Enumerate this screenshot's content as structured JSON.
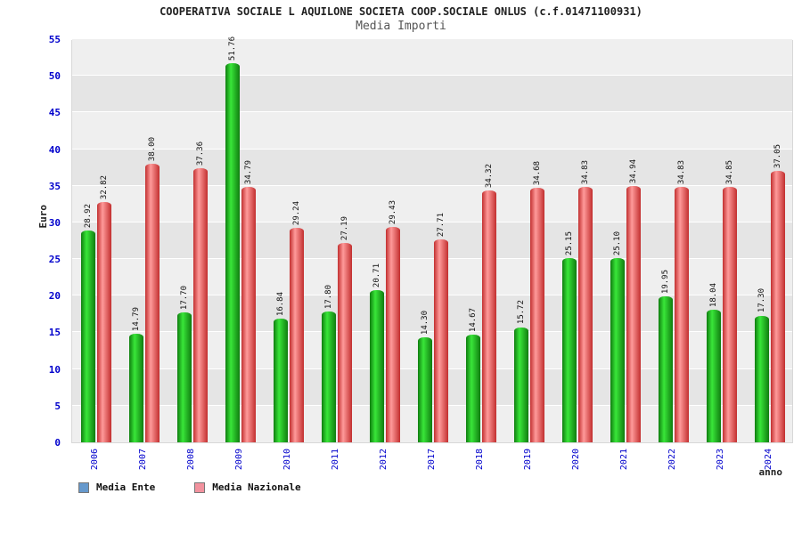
{
  "title": "COOPERATIVA SOCIALE L AQUILONE SOCIETA COOP.SOCIALE ONLUS (c.f.01471100931)",
  "subtitle": "Media Importi",
  "chart_data": {
    "type": "bar",
    "categories": [
      "2006",
      "2007",
      "2008",
      "2009",
      "2010",
      "2011",
      "2012",
      "2017",
      "2018",
      "2019",
      "2020",
      "2021",
      "2022",
      "2023",
      "2024"
    ],
    "series": [
      {
        "name": "Media Ente",
        "values": [
          28.92,
          14.79,
          17.7,
          51.76,
          16.84,
          17.8,
          20.71,
          14.3,
          14.67,
          15.72,
          25.15,
          25.1,
          19.95,
          18.04,
          17.3
        ]
      },
      {
        "name": "Media Nazionale",
        "values": [
          32.82,
          38.0,
          37.36,
          34.79,
          29.24,
          27.19,
          29.43,
          27.71,
          34.32,
          34.68,
          34.83,
          34.94,
          34.83,
          34.85,
          37.05
        ]
      }
    ],
    "ylabel": "Euro",
    "xlabel": "anno",
    "ylim": [
      0,
      55
    ],
    "ytick_step": 5,
    "grid": true,
    "legend_position": "bottom-left",
    "value_labels_rotated": true
  },
  "colors": {
    "axis_text": "#0000cc",
    "value_label_text": "#111111",
    "ente_bar_dark": "#0f7d0f",
    "ente_bar_light": "#39e639",
    "nazionale_bar_dark": "#c22f2f",
    "nazionale_bar_light": "#ff9a9a",
    "legend_ente_swatch": "#6699cc",
    "legend_nazionale_swatch": "#f2929e"
  }
}
